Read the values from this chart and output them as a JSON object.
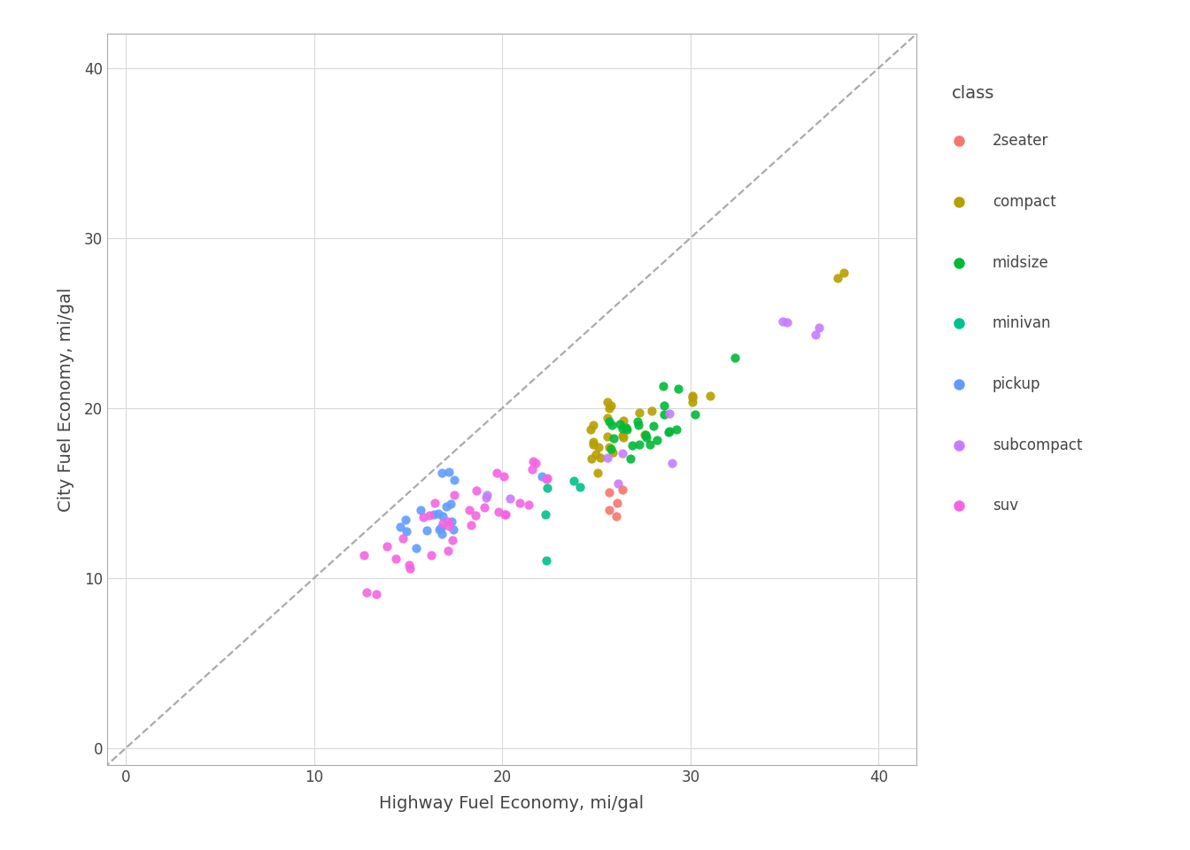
{
  "points": [
    {
      "hwy": 26,
      "cty": 17,
      "class": "compact"
    },
    {
      "hwy": 25,
      "cty": 17,
      "class": "compact"
    },
    {
      "hwy": 26,
      "cty": 18,
      "class": "compact"
    },
    {
      "hwy": 26,
      "cty": 18,
      "class": "compact"
    },
    {
      "hwy": 25,
      "cty": 16,
      "class": "compact"
    },
    {
      "hwy": 28,
      "cty": 18,
      "class": "compact"
    },
    {
      "hwy": 27,
      "cty": 20,
      "class": "compact"
    },
    {
      "hwy": 25,
      "cty": 19,
      "class": "compact"
    },
    {
      "hwy": 25,
      "cty": 18,
      "class": "compact"
    },
    {
      "hwy": 28,
      "cty": 20,
      "class": "compact"
    },
    {
      "hwy": 25,
      "cty": 18,
      "class": "compact"
    },
    {
      "hwy": 25,
      "cty": 18,
      "class": "compact"
    },
    {
      "hwy": 25,
      "cty": 17,
      "class": "compact"
    },
    {
      "hwy": 25,
      "cty": 17,
      "class": "compact"
    },
    {
      "hwy": 30,
      "cty": 21,
      "class": "compact"
    },
    {
      "hwy": 30,
      "cty": 21,
      "class": "compact"
    },
    {
      "hwy": 26,
      "cty": 19,
      "class": "compact"
    },
    {
      "hwy": 26,
      "cty": 19,
      "class": "compact"
    },
    {
      "hwy": 38,
      "cty": 28,
      "class": "compact"
    },
    {
      "hwy": 38,
      "cty": 28,
      "class": "compact"
    },
    {
      "hwy": 26,
      "cty": 20,
      "class": "compact"
    },
    {
      "hwy": 26,
      "cty": 20,
      "class": "compact"
    },
    {
      "hwy": 26,
      "cty": 20,
      "class": "compact"
    },
    {
      "hwy": 25,
      "cty": 19,
      "class": "compact"
    },
    {
      "hwy": 31,
      "cty": 21,
      "class": "compact"
    },
    {
      "hwy": 26,
      "cty": 18,
      "class": "compact"
    },
    {
      "hwy": 26,
      "cty": 18,
      "class": "compact"
    },
    {
      "hwy": 30,
      "cty": 20,
      "class": "compact"
    },
    {
      "hwy": 27,
      "cty": 19,
      "class": "midsize"
    },
    {
      "hwy": 27,
      "cty": 19,
      "class": "midsize"
    },
    {
      "hwy": 27,
      "cty": 18,
      "class": "midsize"
    },
    {
      "hwy": 27,
      "cty": 18,
      "class": "midsize"
    },
    {
      "hwy": 27,
      "cty": 17,
      "class": "midsize"
    },
    {
      "hwy": 28,
      "cty": 18,
      "class": "midsize"
    },
    {
      "hwy": 28,
      "cty": 18,
      "class": "midsize"
    },
    {
      "hwy": 29,
      "cty": 19,
      "class": "midsize"
    },
    {
      "hwy": 29,
      "cty": 21,
      "class": "midsize"
    },
    {
      "hwy": 27,
      "cty": 19,
      "class": "midsize"
    },
    {
      "hwy": 30,
      "cty": 20,
      "class": "midsize"
    },
    {
      "hwy": 29,
      "cty": 19,
      "class": "midsize"
    },
    {
      "hwy": 29,
      "cty": 21,
      "class": "midsize"
    },
    {
      "hwy": 29,
      "cty": 19,
      "class": "midsize"
    },
    {
      "hwy": 28,
      "cty": 18,
      "class": "midsize"
    },
    {
      "hwy": 28,
      "cty": 18,
      "class": "midsize"
    },
    {
      "hwy": 32,
      "cty": 23,
      "class": "midsize"
    },
    {
      "hwy": 26,
      "cty": 19,
      "class": "midsize"
    },
    {
      "hwy": 26,
      "cty": 19,
      "class": "midsize"
    },
    {
      "hwy": 27,
      "cty": 19,
      "class": "midsize"
    },
    {
      "hwy": 28,
      "cty": 19,
      "class": "midsize"
    },
    {
      "hwy": 29,
      "cty": 20,
      "class": "midsize"
    },
    {
      "hwy": 29,
      "cty": 20,
      "class": "midsize"
    },
    {
      "hwy": 26,
      "cty": 19,
      "class": "midsize"
    },
    {
      "hwy": 26,
      "cty": 19,
      "class": "midsize"
    },
    {
      "hwy": 26,
      "cty": 18,
      "class": "midsize"
    },
    {
      "hwy": 26,
      "cty": 18,
      "class": "midsize"
    },
    {
      "hwy": 24,
      "cty": 16,
      "class": "minivan"
    },
    {
      "hwy": 22,
      "cty": 15,
      "class": "minivan"
    },
    {
      "hwy": 24,
      "cty": 15,
      "class": "minivan"
    },
    {
      "hwy": 22,
      "cty": 14,
      "class": "minivan"
    },
    {
      "hwy": 22,
      "cty": 11,
      "class": "minivan"
    },
    {
      "hwy": 17,
      "cty": 14,
      "class": "pickup"
    },
    {
      "hwy": 17,
      "cty": 14,
      "class": "pickup"
    },
    {
      "hwy": 17,
      "cty": 13,
      "class": "pickup"
    },
    {
      "hwy": 17,
      "cty": 13,
      "class": "pickup"
    },
    {
      "hwy": 15,
      "cty": 13,
      "class": "pickup"
    },
    {
      "hwy": 15,
      "cty": 13,
      "class": "pickup"
    },
    {
      "hwy": 17,
      "cty": 13,
      "class": "pickup"
    },
    {
      "hwy": 17,
      "cty": 13,
      "class": "pickup"
    },
    {
      "hwy": 17,
      "cty": 14,
      "class": "pickup"
    },
    {
      "hwy": 15,
      "cty": 13,
      "class": "pickup"
    },
    {
      "hwy": 15,
      "cty": 12,
      "class": "pickup"
    },
    {
      "hwy": 16,
      "cty": 13,
      "class": "pickup"
    },
    {
      "hwy": 17,
      "cty": 13,
      "class": "pickup"
    },
    {
      "hwy": 22,
      "cty": 16,
      "class": "pickup"
    },
    {
      "hwy": 17,
      "cty": 14,
      "class": "pickup"
    },
    {
      "hwy": 16,
      "cty": 14,
      "class": "pickup"
    },
    {
      "hwy": 16,
      "cty": 14,
      "class": "pickup"
    },
    {
      "hwy": 17,
      "cty": 16,
      "class": "pickup"
    },
    {
      "hwy": 17,
      "cty": 16,
      "class": "pickup"
    },
    {
      "hwy": 17,
      "cty": 16,
      "class": "pickup"
    },
    {
      "hwy": 35,
      "cty": 25,
      "class": "subcompact"
    },
    {
      "hwy": 35,
      "cty": 25,
      "class": "subcompact"
    },
    {
      "hwy": 37,
      "cty": 24,
      "class": "subcompact"
    },
    {
      "hwy": 37,
      "cty": 25,
      "class": "subcompact"
    },
    {
      "hwy": 26,
      "cty": 17,
      "class": "subcompact"
    },
    {
      "hwy": 26,
      "cty": 16,
      "class": "subcompact"
    },
    {
      "hwy": 29,
      "cty": 17,
      "class": "subcompact"
    },
    {
      "hwy": 19,
      "cty": 15,
      "class": "subcompact"
    },
    {
      "hwy": 19,
      "cty": 15,
      "class": "subcompact"
    },
    {
      "hwy": 20,
      "cty": 15,
      "class": "subcompact"
    },
    {
      "hwy": 29,
      "cty": 20,
      "class": "subcompact"
    },
    {
      "hwy": 26,
      "cty": 17,
      "class": "subcompact"
    },
    {
      "hwy": 13,
      "cty": 9,
      "class": "suv"
    },
    {
      "hwy": 13,
      "cty": 9,
      "class": "suv"
    },
    {
      "hwy": 15,
      "cty": 11,
      "class": "suv"
    },
    {
      "hwy": 13,
      "cty": 11,
      "class": "suv"
    },
    {
      "hwy": 14,
      "cty": 11,
      "class": "suv"
    },
    {
      "hwy": 14,
      "cty": 12,
      "class": "suv"
    },
    {
      "hwy": 16,
      "cty": 11,
      "class": "suv"
    },
    {
      "hwy": 17,
      "cty": 12,
      "class": "suv"
    },
    {
      "hwy": 17,
      "cty": 12,
      "class": "suv"
    },
    {
      "hwy": 15,
      "cty": 12,
      "class": "suv"
    },
    {
      "hwy": 15,
      "cty": 11,
      "class": "suv"
    },
    {
      "hwy": 19,
      "cty": 15,
      "class": "suv"
    },
    {
      "hwy": 19,
      "cty": 14,
      "class": "suv"
    },
    {
      "hwy": 19,
      "cty": 14,
      "class": "suv"
    },
    {
      "hwy": 20,
      "cty": 14,
      "class": "suv"
    },
    {
      "hwy": 20,
      "cty": 14,
      "class": "suv"
    },
    {
      "hwy": 17,
      "cty": 13,
      "class": "suv"
    },
    {
      "hwy": 17,
      "cty": 13,
      "class": "suv"
    },
    {
      "hwy": 17,
      "cty": 13,
      "class": "suv"
    },
    {
      "hwy": 22,
      "cty": 17,
      "class": "suv"
    },
    {
      "hwy": 22,
      "cty": 17,
      "class": "suv"
    },
    {
      "hwy": 17,
      "cty": 15,
      "class": "suv"
    },
    {
      "hwy": 18,
      "cty": 13,
      "class": "suv"
    },
    {
      "hwy": 18,
      "cty": 14,
      "class": "suv"
    },
    {
      "hwy": 20,
      "cty": 16,
      "class": "suv"
    },
    {
      "hwy": 20,
      "cty": 16,
      "class": "suv"
    },
    {
      "hwy": 16,
      "cty": 14,
      "class": "suv"
    },
    {
      "hwy": 16,
      "cty": 14,
      "class": "suv"
    },
    {
      "hwy": 16,
      "cty": 14,
      "class": "suv"
    },
    {
      "hwy": 22,
      "cty": 16,
      "class": "suv"
    },
    {
      "hwy": 22,
      "cty": 16,
      "class": "suv"
    },
    {
      "hwy": 21,
      "cty": 14,
      "class": "suv"
    },
    {
      "hwy": 21,
      "cty": 14,
      "class": "suv"
    },
    {
      "hwy": 20,
      "cty": 14,
      "class": "suv"
    },
    {
      "hwy": 22,
      "cty": 16,
      "class": "suv"
    },
    {
      "hwy": 26,
      "cty": 15,
      "class": "2seater"
    },
    {
      "hwy": 26,
      "cty": 15,
      "class": "2seater"
    },
    {
      "hwy": 26,
      "cty": 14,
      "class": "2seater"
    },
    {
      "hwy": 26,
      "cty": 14,
      "class": "2seater"
    },
    {
      "hwy": 26,
      "cty": 14,
      "class": "2seater"
    }
  ],
  "class_colors": {
    "2seater": "#F8766D",
    "compact": "#B79F00",
    "midsize": "#00BA38",
    "minivan": "#00C08B",
    "pickup": "#619CFF",
    "subcompact": "#C77CFF",
    "suv": "#F564E3"
  },
  "class_order": [
    "2seater",
    "compact",
    "midsize",
    "minivan",
    "pickup",
    "subcompact",
    "suv"
  ],
  "xlabel": "Highway Fuel Economy, mi/gal",
  "ylabel": "City Fuel Economy, mi/gal",
  "legend_title": "class",
  "xlim": [
    -1,
    42
  ],
  "ylim": [
    -1,
    42
  ],
  "xticks": [
    0,
    10,
    20,
    30,
    40
  ],
  "yticks": [
    0,
    10,
    20,
    30,
    40
  ],
  "point_size": 55,
  "alpha": 0.9,
  "background_color": "#ffffff",
  "panel_background": "#ffffff",
  "grid_color": "#d9d9d9",
  "axis_line_color": "#333333",
  "text_color": "#444444",
  "jitter_seed": 42,
  "jitter_amount": 0.45,
  "diag_color": "#aaaaaa",
  "diag_lw": 1.6
}
